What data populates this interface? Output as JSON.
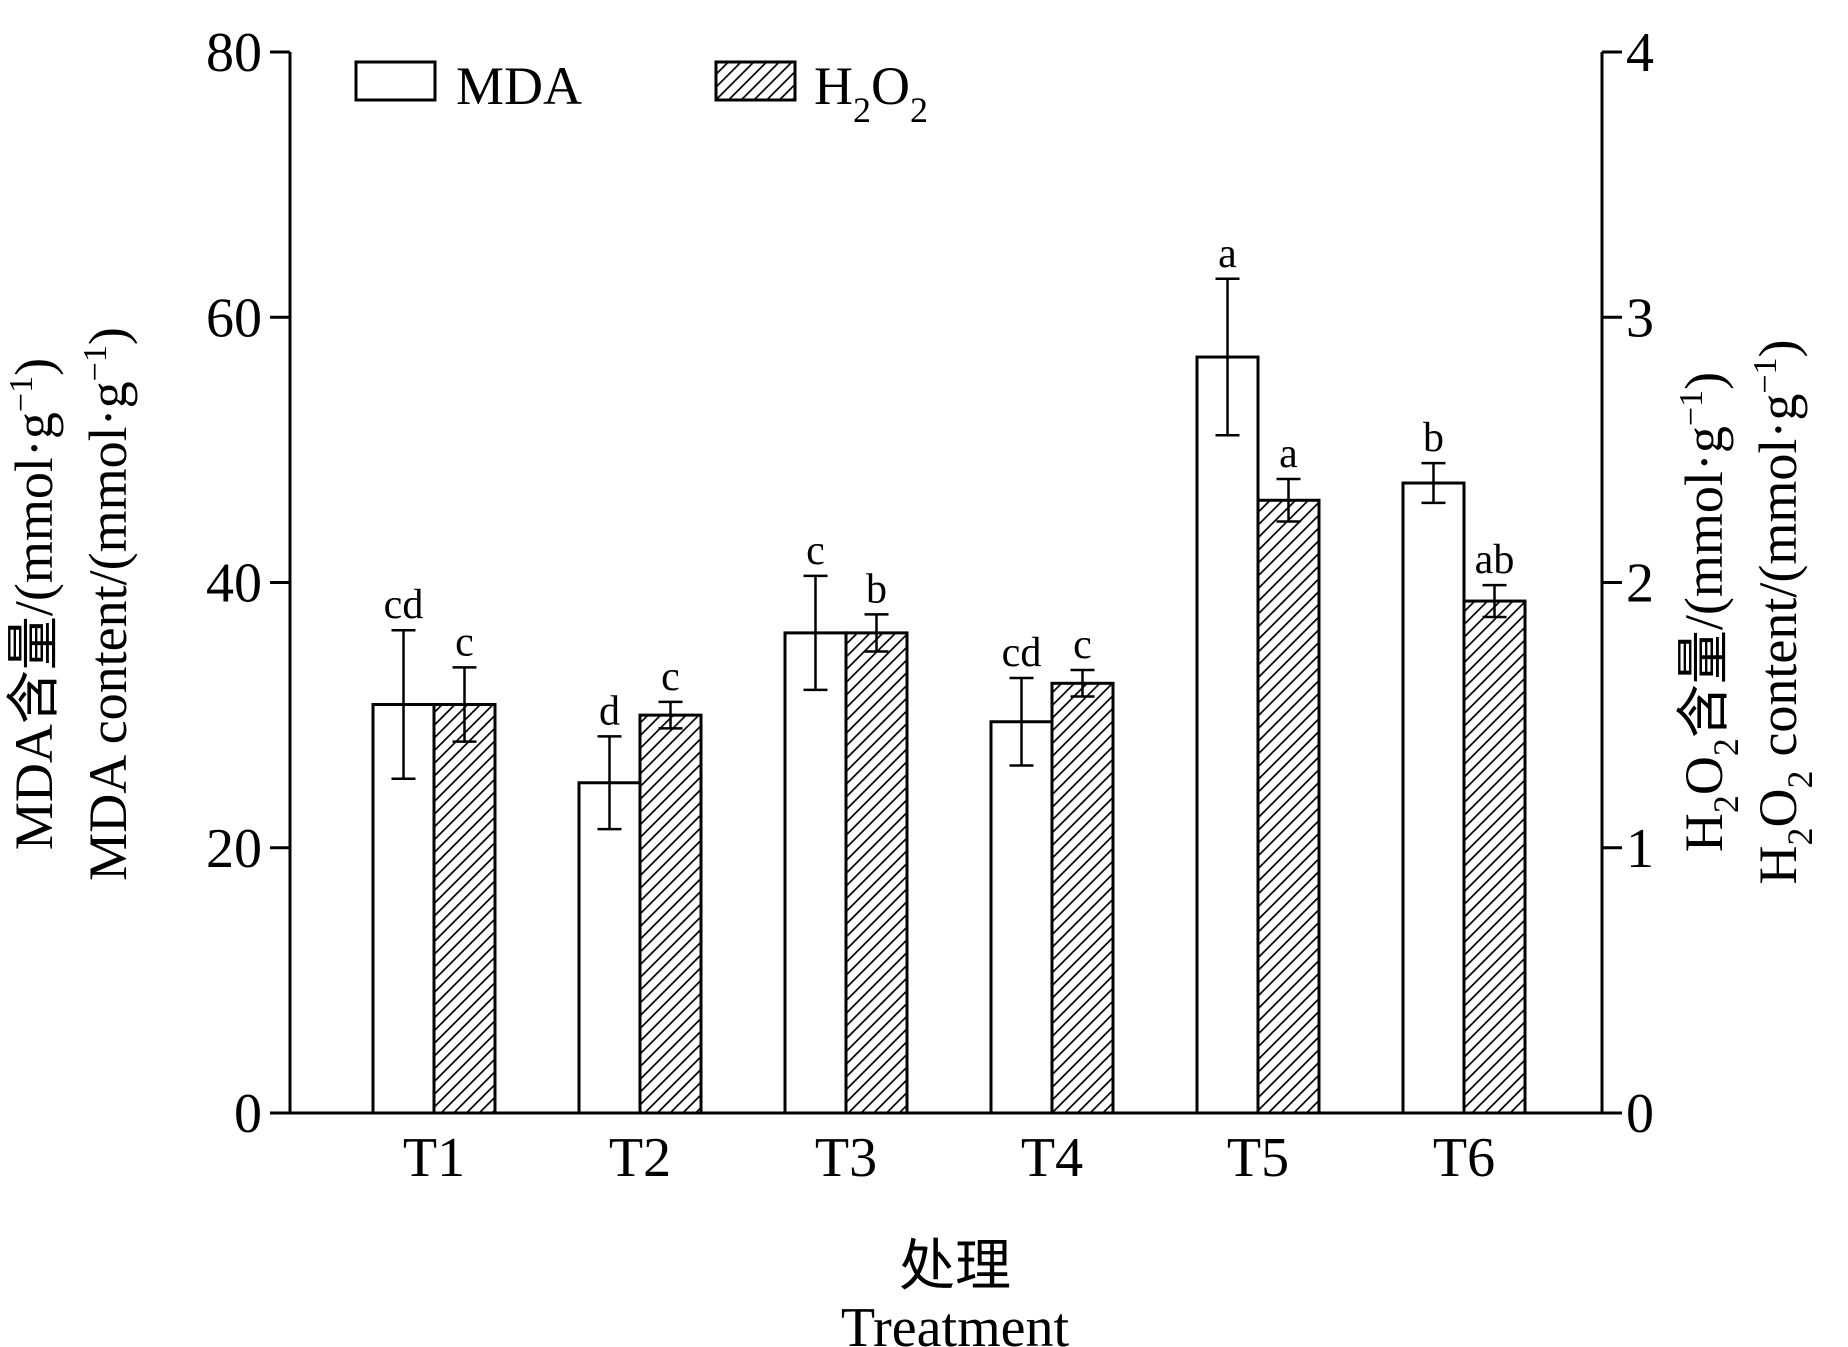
{
  "chart_data": {
    "type": "bar",
    "categories": [
      "T1",
      "T2",
      "T3",
      "T4",
      "T5",
      "T6"
    ],
    "series": [
      {
        "name": "MDA",
        "axis": "left",
        "values": [
          30.8,
          24.9,
          36.2,
          29.5,
          57.0,
          47.5
        ],
        "errors": [
          5.6,
          3.5,
          4.3,
          3.3,
          5.9,
          1.5
        ],
        "letters": [
          "cd",
          "d",
          "c",
          "cd",
          "a",
          "b"
        ]
      },
      {
        "name": "H2O2",
        "axis": "right",
        "values": [
          1.54,
          1.5,
          1.81,
          1.62,
          2.31,
          1.93
        ],
        "errors": [
          0.14,
          0.05,
          0.07,
          0.05,
          0.08,
          0.06
        ],
        "letters": [
          "c",
          "c",
          "b",
          "c",
          "a",
          "ab"
        ]
      }
    ],
    "legend": {
      "items": [
        {
          "label": "MDA",
          "sub": "",
          "fill": "open"
        },
        {
          "label": "H",
          "sub": "2",
          "label2": "O",
          "sub2": "2",
          "fill": "hatched"
        }
      ],
      "placement": "top-left"
    },
    "xlabel_cn": "处理",
    "xlabel_en": "Treatment",
    "ylabel_left_cn": "MDA含量/(mmol·g",
    "ylabel_left_en": "MDA content/(mmol·g",
    "ylabel_right_cn": "含量/(mmol·g",
    "ylabel_right_en": "content/(mmol·g",
    "ylabel_prefix": "H",
    "ylabel_sub": "2",
    "ylabel_o": "O",
    "ylabel_sup": "−1",
    "ylabel_close": ")",
    "yleft": {
      "min": 0,
      "max": 80,
      "ticks": [
        "0",
        "20",
        "40",
        "60",
        "80"
      ]
    },
    "yright": {
      "min": 0,
      "max": 4,
      "ticks": [
        "0",
        "1",
        "2",
        "3",
        "4"
      ]
    },
    "grid": false,
    "colors": {
      "mda_fill": "#ffffff",
      "h2o2_hatch": "#000000",
      "axis": "#000000"
    }
  }
}
